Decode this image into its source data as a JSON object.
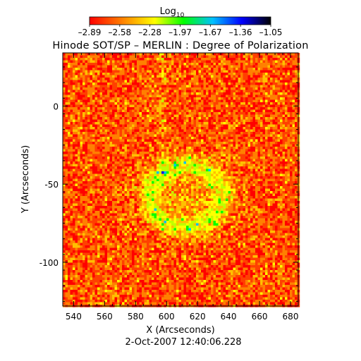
{
  "chart_data": {
    "type": "heatmap",
    "title": "Hinode SOT/SP – MERLIN : Degree of Polarization",
    "colorbar": {
      "label_base": "Log",
      "label_sub": "10",
      "ticks": [
        "–2.89",
        "–2.58",
        "–2.28",
        "–1.97",
        "–1.67",
        "–1.36",
        "–1.05"
      ],
      "range": [
        -2.89,
        -1.05
      ],
      "colors": [
        "#ff0000",
        "#ff8000",
        "#ffff00",
        "#00ff00",
        "#00c0ff",
        "#0000ff",
        "#000000"
      ]
    },
    "xlabel": "X (Arcseconds)",
    "ylabel": "Y (Arcseconds)",
    "xlim": [
      533,
      685
    ],
    "ylim": [
      -128,
      34
    ],
    "xticks": [
      "540",
      "560",
      "580",
      "600",
      "620",
      "640",
      "660",
      "680"
    ],
    "yticks": [
      "0",
      "-50",
      "-100"
    ],
    "timestamp": "2-Oct-2007 12:40:06.228"
  }
}
